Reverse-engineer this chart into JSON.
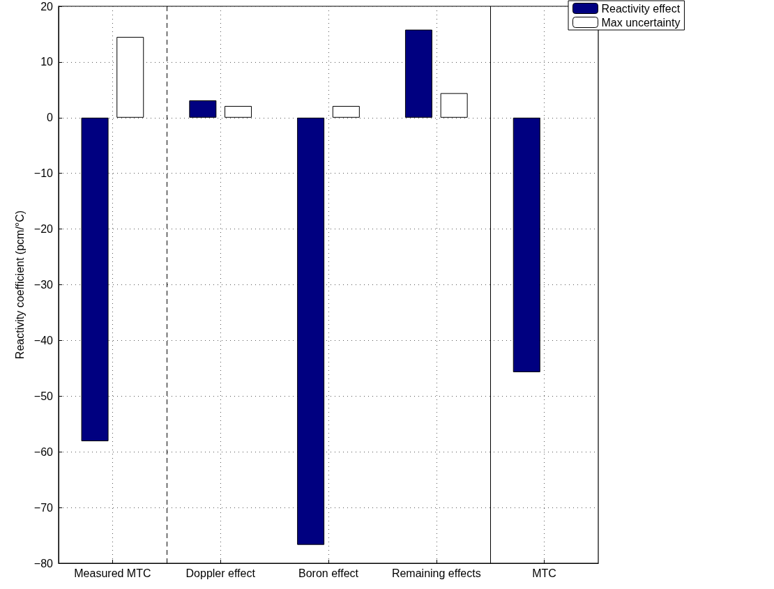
{
  "chart_data": {
    "type": "bar",
    "ylabel": "Reactivity coefficient (pcm/°C)",
    "categories": [
      "Measured MTC",
      "Doppler effect",
      "Boron effect",
      "Remaining effects",
      "MTC"
    ],
    "series": [
      {
        "name": "Reactivity effect",
        "color": "#000080",
        "values": [
          -58.1,
          3.1,
          -76.7,
          15.8,
          -45.7
        ]
      },
      {
        "name": "Max uncertainty",
        "color": "#ffffff",
        "values": [
          14.5,
          2.1,
          2.1,
          4.4,
          null
        ]
      }
    ],
    "ylim": [
      -80,
      20
    ],
    "yticks": [
      -80,
      -70,
      -60,
      -50,
      -40,
      -30,
      -20,
      -10,
      0,
      10,
      20
    ],
    "grid": true,
    "legend": "top right"
  }
}
